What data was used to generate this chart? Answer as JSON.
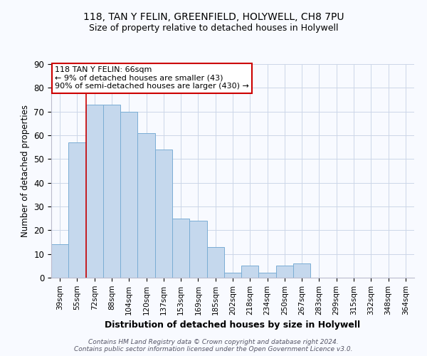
{
  "title1": "118, TAN Y FELIN, GREENFIELD, HOLYWELL, CH8 7PU",
  "title2": "Size of property relative to detached houses in Holywell",
  "xlabel": "Distribution of detached houses by size in Holywell",
  "ylabel": "Number of detached properties",
  "categories": [
    "39sqm",
    "55sqm",
    "72sqm",
    "88sqm",
    "104sqm",
    "120sqm",
    "137sqm",
    "153sqm",
    "169sqm",
    "185sqm",
    "202sqm",
    "218sqm",
    "234sqm",
    "250sqm",
    "267sqm",
    "283sqm",
    "299sqm",
    "315sqm",
    "332sqm",
    "348sqm",
    "364sqm"
  ],
  "values": [
    14,
    57,
    73,
    73,
    70,
    61,
    54,
    25,
    24,
    13,
    2,
    5,
    2,
    5,
    6,
    0,
    0,
    0,
    0,
    0,
    0
  ],
  "bar_color": "#c5d8ed",
  "bar_edge_color": "#7aadd4",
  "annotation_box_color": "#ffffff",
  "annotation_box_edge_color": "#cc0000",
  "annotation_line1": "118 TAN Y FELIN: 66sqm",
  "annotation_line2": "← 9% of detached houses are smaller (43)",
  "annotation_line3": "90% of semi-detached houses are larger (430) →",
  "vline_color": "#cc0000",
  "vline_x_bin": 1.5,
  "ylim": [
    0,
    90
  ],
  "yticks": [
    0,
    10,
    20,
    30,
    40,
    50,
    60,
    70,
    80,
    90
  ],
  "footnote_line1": "Contains HM Land Registry data © Crown copyright and database right 2024.",
  "footnote_line2": "Contains public sector information licensed under the Open Government Licence v3.0.",
  "grid_color": "#ccd6e8",
  "bg_color": "#f8faff",
  "title1_fontsize": 10,
  "title2_fontsize": 9
}
